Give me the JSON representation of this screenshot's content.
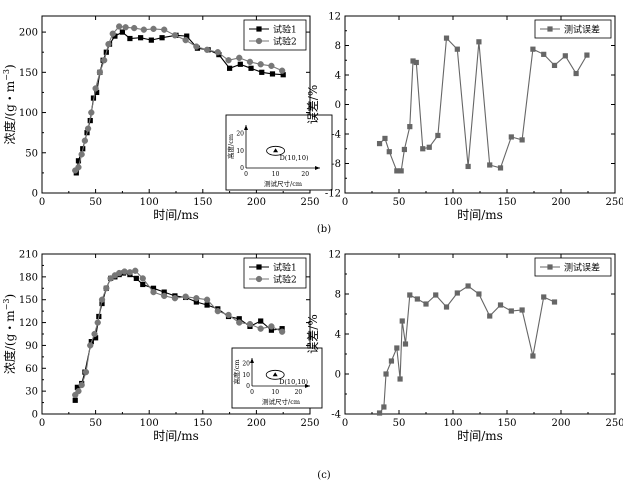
{
  "panel_labels": [
    "(b)",
    "(c)"
  ],
  "colors": {
    "series1": "#000000",
    "series2": "#777777",
    "error": "#666666",
    "axis": "#000000"
  },
  "chart_data": [
    {
      "type": "line",
      "title": "",
      "xlabel": "时间/ms",
      "ylabel": "浓度/(g・m",
      "ylabel_sup": "−3",
      "ylabel_close": ")",
      "xlim": [
        0,
        250
      ],
      "ylim": [
        0,
        220
      ],
      "xticks": [
        0,
        50,
        100,
        150,
        200,
        250
      ],
      "yticks": [
        0,
        50,
        100,
        150,
        200
      ],
      "grid": false,
      "legend": "top-right",
      "series": [
        {
          "name": "试验1",
          "marker": "square",
          "x": [
            32,
            34,
            38,
            42,
            45,
            48,
            51,
            54,
            57,
            60,
            63,
            68,
            75,
            82,
            92,
            102,
            112,
            125,
            135,
            145,
            155,
            165,
            175,
            185,
            195,
            205,
            215,
            225
          ],
          "y": [
            25,
            40,
            55,
            75,
            90,
            118,
            125,
            150,
            165,
            175,
            185,
            195,
            200,
            192,
            193,
            190,
            193,
            196,
            195,
            180,
            178,
            172,
            155,
            160,
            155,
            150,
            148,
            147
          ]
        },
        {
          "name": "试验2",
          "marker": "circle",
          "x": [
            31,
            34,
            37,
            40,
            43,
            46,
            50,
            54,
            58,
            62,
            66,
            72,
            78,
            86,
            95,
            104,
            114,
            124,
            134,
            144,
            154,
            164,
            174,
            184,
            194,
            204,
            214,
            224
          ],
          "y": [
            28,
            32,
            48,
            65,
            80,
            100,
            130,
            150,
            165,
            185,
            198,
            207,
            206,
            205,
            203,
            204,
            203,
            196,
            190,
            182,
            178,
            175,
            165,
            168,
            163,
            160,
            158,
            152
          ]
        }
      ],
      "inset": {
        "xlabel": "测试尺寸/cm",
        "ylabel": "高度/cm",
        "point_label": "D(10,10)",
        "xticks": [
          0,
          10,
          20
        ],
        "yticks": [
          0,
          10,
          20
        ]
      }
    },
    {
      "type": "line",
      "title": "",
      "xlabel": "时间/ms",
      "ylabel": "误差/%",
      "xlim": [
        0,
        250
      ],
      "ylim": [
        -12,
        12
      ],
      "xticks": [
        0,
        50,
        100,
        150,
        200,
        250
      ],
      "yticks": [
        -12,
        -8,
        -4,
        0,
        4,
        8,
        12
      ],
      "grid": false,
      "legend": "top-right",
      "series": [
        {
          "name": "测试误差",
          "marker": "square",
          "x": [
            32,
            37,
            41,
            48,
            52,
            55,
            60,
            63,
            66,
            72,
            78,
            86,
            94,
            104,
            114,
            124,
            134,
            144,
            154,
            164,
            174,
            184,
            194,
            204,
            214,
            224
          ],
          "y": [
            -5.3,
            -4.6,
            -6.4,
            -9.0,
            -9.0,
            -6.1,
            -3.0,
            5.9,
            5.7,
            -6.0,
            -5.8,
            -4.2,
            9.0,
            7.5,
            -8.4,
            8.5,
            -8.2,
            -8.6,
            -4.4,
            -4.8,
            7.5,
            6.8,
            5.3,
            6.6,
            4.2,
            6.7
          ]
        }
      ]
    },
    {
      "type": "line",
      "title": "",
      "xlabel": "时间/ms",
      "ylabel": "浓度/(g・m",
      "ylabel_sup": "−3",
      "ylabel_close": ")",
      "xlim": [
        0,
        250
      ],
      "ylim": [
        0,
        210
      ],
      "xticks": [
        0,
        50,
        100,
        150,
        200,
        250
      ],
      "yticks": [
        0,
        30,
        60,
        90,
        120,
        150,
        180,
        210
      ],
      "grid": false,
      "legend": "top-right",
      "series": [
        {
          "name": "试验1",
          "marker": "square",
          "x": [
            31,
            33,
            37,
            40,
            46,
            50,
            53,
            56,
            60,
            64,
            68,
            72,
            76,
            82,
            88,
            94,
            104,
            114,
            124,
            134,
            144,
            154,
            164,
            174,
            184,
            194,
            204,
            214,
            224
          ],
          "y": [
            18,
            35,
            40,
            55,
            95,
            100,
            128,
            145,
            165,
            178,
            180,
            183,
            185,
            183,
            178,
            170,
            165,
            160,
            155,
            153,
            147,
            143,
            138,
            128,
            125,
            115,
            122,
            110,
            112
          ]
        },
        {
          "name": "试验2",
          "marker": "circle",
          "x": [
            31,
            34,
            37,
            41,
            45,
            49,
            52,
            56,
            60,
            64,
            68,
            72,
            77,
            82,
            87,
            94,
            104,
            114,
            124,
            134,
            144,
            154,
            164,
            174,
            184,
            194,
            204,
            214,
            224
          ],
          "y": [
            25,
            30,
            38,
            55,
            90,
            105,
            120,
            150,
            165,
            178,
            182,
            185,
            187,
            186,
            188,
            178,
            160,
            155,
            152,
            154,
            152,
            150,
            135,
            130,
            120,
            118,
            112,
            115,
            108
          ]
        }
      ],
      "inset": {
        "xlabel": "测试尺寸/cm",
        "ylabel": "高度/cm",
        "point_label": "D(10,10)",
        "xticks": [
          0,
          10,
          20
        ],
        "yticks": [
          0,
          10,
          20
        ]
      }
    },
    {
      "type": "line",
      "title": "",
      "xlabel": "时间/ms",
      "ylabel": "误差/%",
      "xlim": [
        0,
        250
      ],
      "ylim": [
        -4,
        12
      ],
      "xticks": [
        0,
        50,
        100,
        150,
        200,
        250
      ],
      "yticks": [
        -4,
        0,
        4,
        8,
        12
      ],
      "grid": false,
      "legend": "top-right",
      "series": [
        {
          "name": "测试误差",
          "marker": "square",
          "x": [
            32,
            36,
            38,
            43,
            48,
            51,
            53,
            56,
            60,
            67,
            75,
            84,
            94,
            104,
            114,
            124,
            134,
            144,
            154,
            164,
            174,
            184,
            194
          ],
          "y": [
            -3.9,
            -3.3,
            0.0,
            1.3,
            2.6,
            -0.5,
            5.3,
            3.0,
            7.9,
            7.5,
            7.0,
            7.9,
            6.7,
            8.1,
            8.8,
            8.0,
            5.8,
            6.9,
            6.3,
            6.4,
            1.8,
            7.7,
            7.2
          ]
        }
      ]
    }
  ]
}
